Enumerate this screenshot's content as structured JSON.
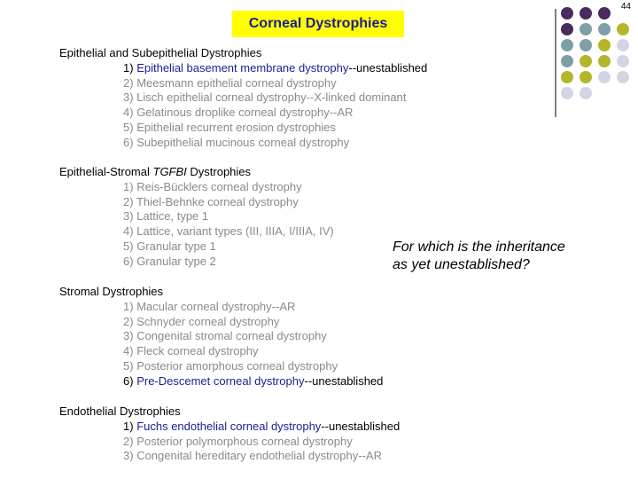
{
  "page_number": "44",
  "title": "Corneal Dystrophies",
  "question": [
    "For which is the inheritance",
    "as yet unestablished?"
  ],
  "sections": [
    {
      "title": [
        "Epithelial and Subepithelial Dystrophies"
      ],
      "items": [
        {
          "label": "1)",
          "name": "Epithelial basement membrane dystrophy",
          "note": "--unestablished",
          "emphasis": true
        },
        {
          "label": "2)",
          "name": "Meesmann epithelial corneal dystrophy"
        },
        {
          "label": "3)",
          "name": "Lisch epithelial corneal dystrophy",
          "note": "--X-linked dominant"
        },
        {
          "label": "4)",
          "name": "Gelatinous droplike corneal dystrophy",
          "note": "--AR"
        },
        {
          "label": "5)",
          "name": "Epithelial recurrent erosion dystrophies"
        },
        {
          "label": "6)",
          "name": "Subepithelial mucinous corneal dystrophy"
        }
      ]
    },
    {
      "title": [
        "Epithelial-Stromal ",
        "TGFBI",
        " Dystrophies"
      ],
      "italic_part": 1,
      "items": [
        {
          "label": "1)",
          "name": "Reis-Bücklers corneal dystrophy"
        },
        {
          "label": "2)",
          "name": "Thiel-Behnke corneal dystrophy"
        },
        {
          "label": "3)",
          "name": "Lattice, type 1"
        },
        {
          "label": "4)",
          "name": "Lattice, variant types (III, IIIA, I/IIIA, IV)"
        },
        {
          "label": "5)",
          "name": "Granular type 1"
        },
        {
          "label": "6)",
          "name": "Granular type 2"
        }
      ]
    },
    {
      "title": [
        "Stromal Dystrophies"
      ],
      "items": [
        {
          "label": "1)",
          "name": "Macular corneal dystrophy",
          "note": "--AR"
        },
        {
          "label": "2)",
          "name": "Schnyder corneal dystrophy"
        },
        {
          "label": "3)",
          "name": "Congenital stromal corneal dystrophy"
        },
        {
          "label": "4)",
          "name": "Fleck corneal dystrophy"
        },
        {
          "label": "5)",
          "name": "Posterior amorphous corneal dystrophy"
        },
        {
          "label": "6)",
          "name": "Pre-Descemet corneal dystrophy",
          "note": "--unestablished",
          "emphasis": true
        }
      ]
    },
    {
      "title": [
        "Endothelial Dystrophies"
      ],
      "items": [
        {
          "label": "1)",
          "name": "Fuchs endothelial corneal dystrophy",
          "note": "--unestablished",
          "emphasis": true
        },
        {
          "label": "2)",
          "name": "Posterior polymorphous corneal dystrophy"
        },
        {
          "label": "3)",
          "name": "Congenital hereditary endothelial dystrophy",
          "note": "--AR"
        }
      ]
    }
  ]
}
